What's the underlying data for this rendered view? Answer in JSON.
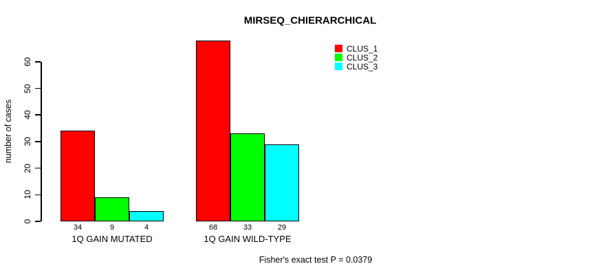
{
  "chart_data": {
    "type": "bar",
    "title": "MIRSEQ_CHIERARCHICAL",
    "ylabel": "number of cases",
    "xlabel": "",
    "categories": [
      "1Q GAIN MUTATED",
      "1Q GAIN WILD-TYPE"
    ],
    "series": [
      {
        "name": "CLUS_1",
        "color": "#FF0000",
        "values": [
          34,
          68
        ]
      },
      {
        "name": "CLUS_2",
        "color": "#00FF00",
        "values": [
          9,
          33
        ]
      },
      {
        "name": "CLUS_3",
        "color": "#00FFFF",
        "values": [
          4,
          29
        ]
      }
    ],
    "bar_value_labels": [
      [
        34,
        9,
        4
      ],
      [
        68,
        33,
        29
      ]
    ],
    "yticks": [
      0,
      10,
      20,
      30,
      40,
      50,
      60
    ],
    "ylim": [
      0,
      60
    ],
    "grid": false,
    "legend_position": "top-right",
    "annotation": "Fisher's exact test P = 0.0379"
  }
}
